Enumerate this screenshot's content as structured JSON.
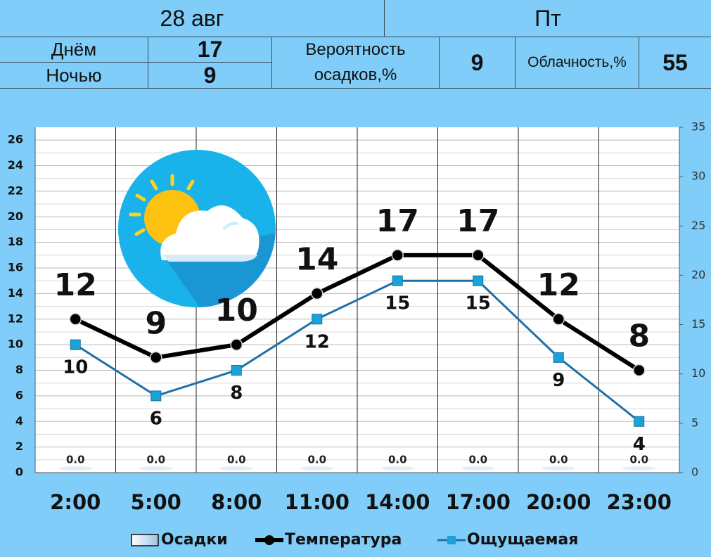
{
  "header": {
    "date": "28 авг",
    "weekday": "Пт",
    "day": {
      "label": "Днём",
      "value": "17"
    },
    "night": {
      "label": "Ночью",
      "value": "9"
    },
    "precipitation": {
      "label": "Вероятность осадков,%",
      "value": "9"
    },
    "cloudiness": {
      "label": "Облачность,%",
      "value": "55"
    }
  },
  "chart_data": {
    "type": "line",
    "categories": [
      "2:00",
      "5:00",
      "8:00",
      "11:00",
      "14:00",
      "17:00",
      "20:00",
      "23:00"
    ],
    "series": [
      {
        "name": "Осадки",
        "type": "bar",
        "axis": "y2",
        "color": "#e3eef7",
        "values": [
          0,
          0,
          0,
          0,
          0,
          0,
          0,
          0
        ],
        "value_labels": [
          "0.0",
          "0.0",
          "0.0",
          "0.0",
          "0.0",
          "0.0",
          "0.0",
          "0.0"
        ]
      },
      {
        "name": "Температура",
        "type": "line",
        "marker": "circle",
        "color": "#000000",
        "values": [
          12,
          9,
          10,
          14,
          17,
          17,
          12,
          8
        ]
      },
      {
        "name": "Ощущаемая",
        "type": "line",
        "marker": "square",
        "color": "#1f6fa8",
        "marker_color": "#1aa3d9",
        "values": [
          10,
          6,
          8,
          12,
          15,
          15,
          9,
          4
        ]
      }
    ],
    "ylim": [
      0,
      27
    ],
    "yticks": [
      0,
      2,
      4,
      6,
      8,
      10,
      12,
      14,
      16,
      18,
      20,
      22,
      24,
      26
    ],
    "y2lim": [
      0,
      35
    ],
    "y2ticks": [
      0,
      5,
      10,
      15,
      20,
      25,
      30,
      35
    ],
    "grid": true,
    "legend": "bottom"
  }
}
